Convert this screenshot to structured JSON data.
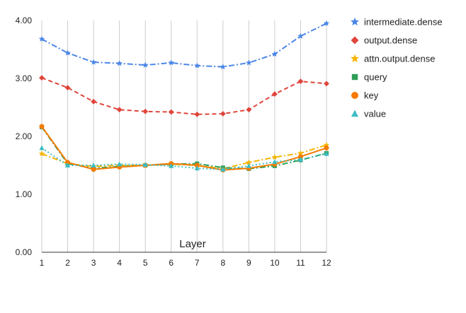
{
  "chart_data": {
    "type": "line",
    "title": "",
    "xlabel": "Layer",
    "ylabel": "",
    "x": [
      1,
      2,
      3,
      4,
      5,
      6,
      7,
      8,
      9,
      10,
      11,
      12
    ],
    "ylim": [
      0,
      4
    ],
    "yticks": [
      "0.00",
      "1.00",
      "2.00",
      "3.00",
      "4.00"
    ],
    "grid": "vertical",
    "legend_position": "right",
    "series": [
      {
        "name": "intermediate.dense",
        "color": "#4a86e8",
        "marker": "star",
        "dash": "dashdot",
        "values": [
          3.68,
          3.44,
          3.28,
          3.26,
          3.23,
          3.27,
          3.22,
          3.2,
          3.27,
          3.42,
          3.73,
          3.95
        ]
      },
      {
        "name": "output.dense",
        "color": "#e0443a",
        "marker": "diamond",
        "dash": "dash",
        "values": [
          3.01,
          2.84,
          2.6,
          2.46,
          2.43,
          2.42,
          2.38,
          2.39,
          2.46,
          2.73,
          2.95,
          2.91
        ]
      },
      {
        "name": "attn.output.dense",
        "color": "#f6b400",
        "marker": "star",
        "dash": "dashdot",
        "values": [
          1.7,
          1.53,
          1.48,
          1.5,
          1.5,
          1.52,
          1.5,
          1.44,
          1.55,
          1.64,
          1.71,
          1.85
        ]
      },
      {
        "name": "query",
        "color": "#2e9e57",
        "marker": "square",
        "dash": "dashdot",
        "values": [
          2.16,
          1.53,
          1.45,
          1.48,
          1.5,
          1.52,
          1.53,
          1.46,
          1.44,
          1.49,
          1.59,
          1.71
        ]
      },
      {
        "name": "key",
        "color": "#f57c00",
        "marker": "circle",
        "dash": "solid",
        "values": [
          2.17,
          1.55,
          1.43,
          1.47,
          1.5,
          1.53,
          1.5,
          1.42,
          1.45,
          1.52,
          1.65,
          1.8
        ]
      },
      {
        "name": "value",
        "color": "#3ebcc4",
        "marker": "triangle",
        "dash": "dot",
        "values": [
          1.8,
          1.5,
          1.5,
          1.52,
          1.51,
          1.49,
          1.45,
          1.43,
          1.49,
          1.56,
          1.6,
          1.7
        ]
      }
    ]
  }
}
